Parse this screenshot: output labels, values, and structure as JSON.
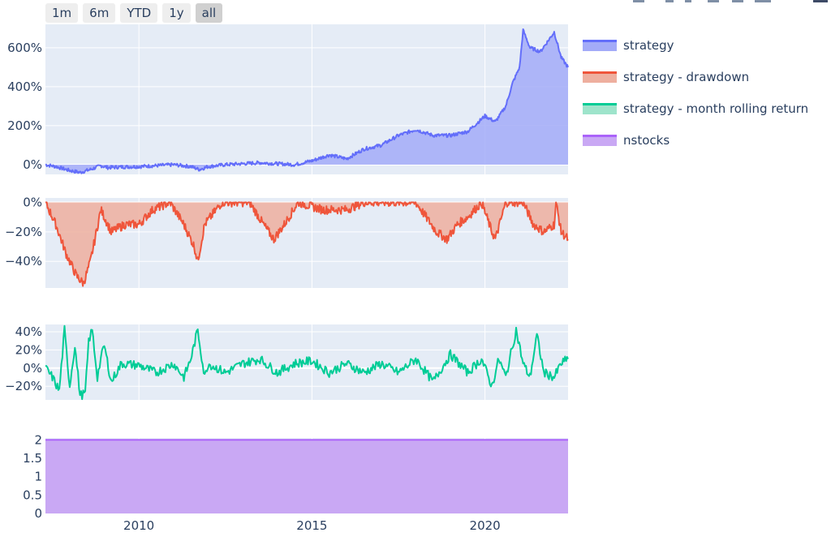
{
  "range_selector": {
    "buttons": [
      "1m",
      "6m",
      "YTD",
      "1y",
      "all"
    ],
    "active": "all"
  },
  "legend": [
    {
      "name": "strategy",
      "line": "#636efa",
      "fill": "#a3abf8"
    },
    {
      "name": "strategy - drawdown",
      "line": "#ef553b",
      "fill": "#eeaf9f"
    },
    {
      "name": "strategy - month rolling return",
      "line": "#00cc96",
      "fill": "#9ee4cb"
    },
    {
      "name": "nstocks",
      "line": "#ab63fa",
      "fill": "#c9a8f4"
    }
  ],
  "chart_data": {
    "type": "area",
    "x_range": [
      2007.3,
      2022.4
    ],
    "x_ticks": [
      2010,
      2015,
      2020
    ],
    "x_tick_labels": [
      "2010",
      "2015",
      "2020"
    ],
    "subplots": [
      {
        "series": "strategy",
        "type": "area",
        "unit": "%",
        "ylim": [
          -50,
          720
        ],
        "y_ticks": [
          0,
          200,
          400,
          600
        ],
        "y_tick_labels": [
          "0%",
          "200%",
          "400%",
          "600%"
        ],
        "points": [
          [
            2007.3,
            0
          ],
          [
            2007.6,
            -10
          ],
          [
            2008.0,
            -30
          ],
          [
            2008.3,
            -40
          ],
          [
            2008.6,
            -25
          ],
          [
            2008.9,
            -5
          ],
          [
            2009.1,
            -15
          ],
          [
            2009.5,
            -12
          ],
          [
            2010.0,
            -10
          ],
          [
            2010.5,
            -5
          ],
          [
            2011.0,
            0
          ],
          [
            2011.5,
            -10
          ],
          [
            2011.75,
            -25
          ],
          [
            2012.0,
            -10
          ],
          [
            2012.5,
            0
          ],
          [
            2013.0,
            5
          ],
          [
            2013.5,
            10
          ],
          [
            2014.0,
            5
          ],
          [
            2014.5,
            0
          ],
          [
            2015.0,
            20
          ],
          [
            2015.5,
            50
          ],
          [
            2016.0,
            30
          ],
          [
            2016.5,
            80
          ],
          [
            2017.0,
            100
          ],
          [
            2017.5,
            150
          ],
          [
            2018.0,
            180
          ],
          [
            2018.5,
            150
          ],
          [
            2019.0,
            150
          ],
          [
            2019.5,
            170
          ],
          [
            2020.0,
            250
          ],
          [
            2020.3,
            220
          ],
          [
            2020.6,
            300
          ],
          [
            2020.8,
            420
          ],
          [
            2021.0,
            500
          ],
          [
            2021.1,
            690
          ],
          [
            2021.3,
            600
          ],
          [
            2021.6,
            580
          ],
          [
            2021.8,
            630
          ],
          [
            2022.0,
            680
          ],
          [
            2022.2,
            550
          ],
          [
            2022.4,
            500
          ]
        ]
      },
      {
        "series": "strategy - drawdown",
        "type": "area",
        "unit": "%",
        "ylim": [
          -58,
          3
        ],
        "y_ticks": [
          0,
          -20,
          -40
        ],
        "y_tick_labels": [
          "0%",
          "−20%",
          "−40%"
        ],
        "points": [
          [
            2007.3,
            0
          ],
          [
            2007.6,
            -15
          ],
          [
            2007.9,
            -35
          ],
          [
            2008.2,
            -50
          ],
          [
            2008.4,
            -55
          ],
          [
            2008.6,
            -40
          ],
          [
            2008.9,
            -5
          ],
          [
            2009.2,
            -20
          ],
          [
            2009.6,
            -15
          ],
          [
            2010.0,
            -15
          ],
          [
            2010.4,
            -5
          ],
          [
            2010.9,
            0
          ],
          [
            2011.3,
            -15
          ],
          [
            2011.6,
            -30
          ],
          [
            2011.7,
            -40
          ],
          [
            2011.9,
            -15
          ],
          [
            2012.4,
            0
          ],
          [
            2013.2,
            0
          ],
          [
            2013.6,
            -15
          ],
          [
            2013.9,
            -25
          ],
          [
            2014.2,
            -15
          ],
          [
            2014.6,
            0
          ],
          [
            2015.3,
            -5
          ],
          [
            2016.0,
            -5
          ],
          [
            2016.5,
            0
          ],
          [
            2017.5,
            0
          ],
          [
            2018.0,
            0
          ],
          [
            2018.6,
            -20
          ],
          [
            2018.9,
            -25
          ],
          [
            2019.2,
            -15
          ],
          [
            2019.5,
            -10
          ],
          [
            2019.9,
            0
          ],
          [
            2020.2,
            -20
          ],
          [
            2020.3,
            -25
          ],
          [
            2020.6,
            0
          ],
          [
            2021.1,
            0
          ],
          [
            2021.4,
            -15
          ],
          [
            2021.7,
            -20
          ],
          [
            2022.0,
            -15
          ],
          [
            2022.05,
            0
          ],
          [
            2022.2,
            -20
          ],
          [
            2022.4,
            -25
          ]
        ]
      },
      {
        "series": "strategy - month rolling return",
        "type": "line",
        "unit": "%",
        "ylim": [
          -35,
          48
        ],
        "y_ticks": [
          40,
          20,
          0,
          -20
        ],
        "y_tick_labels": [
          "40%",
          "20%",
          "0%",
          "−20%"
        ],
        "points": [
          [
            2007.3,
            0
          ],
          [
            2007.5,
            -10
          ],
          [
            2007.7,
            -25
          ],
          [
            2007.85,
            42
          ],
          [
            2008.0,
            -20
          ],
          [
            2008.15,
            25
          ],
          [
            2008.3,
            -30
          ],
          [
            2008.45,
            -28
          ],
          [
            2008.55,
            30
          ],
          [
            2008.65,
            42
          ],
          [
            2008.8,
            -10
          ],
          [
            2008.9,
            10
          ],
          [
            2009.0,
            25
          ],
          [
            2009.2,
            -15
          ],
          [
            2009.5,
            5
          ],
          [
            2010.0,
            3
          ],
          [
            2010.5,
            -5
          ],
          [
            2011.0,
            5
          ],
          [
            2011.3,
            -10
          ],
          [
            2011.5,
            10
          ],
          [
            2011.7,
            42
          ],
          [
            2011.9,
            -10
          ],
          [
            2012.0,
            5
          ],
          [
            2012.5,
            -5
          ],
          [
            2013.0,
            5
          ],
          [
            2013.5,
            10
          ],
          [
            2014.0,
            -5
          ],
          [
            2014.5,
            5
          ],
          [
            2015.0,
            8
          ],
          [
            2015.5,
            -5
          ],
          [
            2016.0,
            5
          ],
          [
            2016.5,
            -5
          ],
          [
            2017.0,
            5
          ],
          [
            2017.5,
            -5
          ],
          [
            2018.0,
            10
          ],
          [
            2018.5,
            -15
          ],
          [
            2019.0,
            15
          ],
          [
            2019.5,
            -5
          ],
          [
            2019.9,
            10
          ],
          [
            2020.2,
            -20
          ],
          [
            2020.4,
            10
          ],
          [
            2020.6,
            -10
          ],
          [
            2020.9,
            42
          ],
          [
            2021.1,
            5
          ],
          [
            2021.3,
            -10
          ],
          [
            2021.5,
            36
          ],
          [
            2021.7,
            -5
          ],
          [
            2022.0,
            -10
          ],
          [
            2022.2,
            5
          ],
          [
            2022.4,
            10
          ]
        ]
      },
      {
        "series": "nstocks",
        "type": "area",
        "unit": "",
        "ylim": [
          0,
          2.05
        ],
        "y_ticks": [
          0,
          0.5,
          1,
          1.5,
          2
        ],
        "y_tick_labels": [
          "0",
          "0.5",
          "1",
          "1.5",
          "2"
        ],
        "points": [
          [
            2007.3,
            2
          ],
          [
            2022.4,
            2
          ]
        ]
      }
    ]
  }
}
